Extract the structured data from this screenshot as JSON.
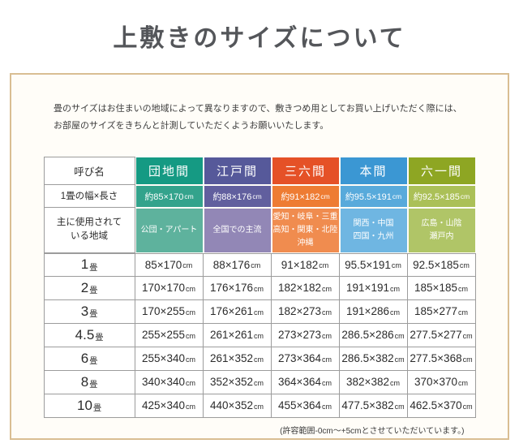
{
  "title": "上敷きのサイズについて",
  "intro": {
    "line1": "畳のサイズはお住まいの地域によって異なりますので、敷きつめ用としてお買い上げいただく際には、",
    "line2": "お部屋のサイズをきちんと計測していただくようお願いいたします。"
  },
  "table": {
    "corner_label": "呼び名",
    "width_row_label": "1畳の幅×長さ",
    "region_row_label_line1": "主に使用されて",
    "region_row_label_line2": "いる地域",
    "unit": "cm",
    "columns": [
      {
        "name": "団地間",
        "approx_size": "約85×170",
        "regions": [
          "公団・アパート"
        ],
        "colors": {
          "header": "#159a83",
          "size": "#33a38c",
          "region": "#5eb29d"
        }
      },
      {
        "name": "江戸間",
        "approx_size": "約88×176",
        "regions": [
          "全国での主流"
        ],
        "colors": {
          "header": "#56599a",
          "size": "#615f9e",
          "region": "#9287b6"
        }
      },
      {
        "name": "三六間",
        "approx_size": "約91×182",
        "regions": [
          "愛知・岐阜・三重",
          "高知・関東・北陸",
          "沖縄"
        ],
        "colors": {
          "header": "#e55127",
          "size": "#ee7c33",
          "region": "#f08c4f"
        }
      },
      {
        "name": "本間",
        "approx_size": "約95.5×191",
        "regions": [
          "関西・中国",
          "四国・九州"
        ],
        "colors": {
          "header": "#3b97d3",
          "size": "#58aadb",
          "region": "#6fb6e2"
        }
      },
      {
        "name": "六一間",
        "approx_size": "約92.5×185",
        "regions": [
          "広島・山陰",
          "瀬戸内"
        ],
        "colors": {
          "header": "#8ea623",
          "size": "#abc057",
          "region": "#b0c567"
        }
      }
    ],
    "rows": [
      {
        "label": "1",
        "unit_label": "畳",
        "values": [
          "85×170",
          "88×176",
          "91×182",
          "95.5×191",
          "92.5×185"
        ]
      },
      {
        "label": "2",
        "unit_label": "畳",
        "values": [
          "170×170",
          "176×176",
          "182×182",
          "191×191",
          "185×185"
        ]
      },
      {
        "label": "3",
        "unit_label": "畳",
        "values": [
          "170×255",
          "176×261",
          "182×273",
          "191×286",
          "185×277"
        ]
      },
      {
        "label": "4.5",
        "unit_label": "畳",
        "values": [
          "255×255",
          "261×261",
          "273×273",
          "286.5×286",
          "277.5×277"
        ]
      },
      {
        "label": "6",
        "unit_label": "畳",
        "values": [
          "255×340",
          "261×352",
          "273×364",
          "286.5×382",
          "277.5×368"
        ]
      },
      {
        "label": "8",
        "unit_label": "畳",
        "values": [
          "340×340",
          "352×352",
          "364×364",
          "382×382",
          "370×370"
        ]
      },
      {
        "label": "10",
        "unit_label": "畳",
        "values": [
          "425×340",
          "440×352",
          "455×364",
          "477.5×382",
          "462.5×370"
        ]
      }
    ]
  },
  "footer_note": "(許容範囲-0cm～+5cmとさせていただいています。)"
}
